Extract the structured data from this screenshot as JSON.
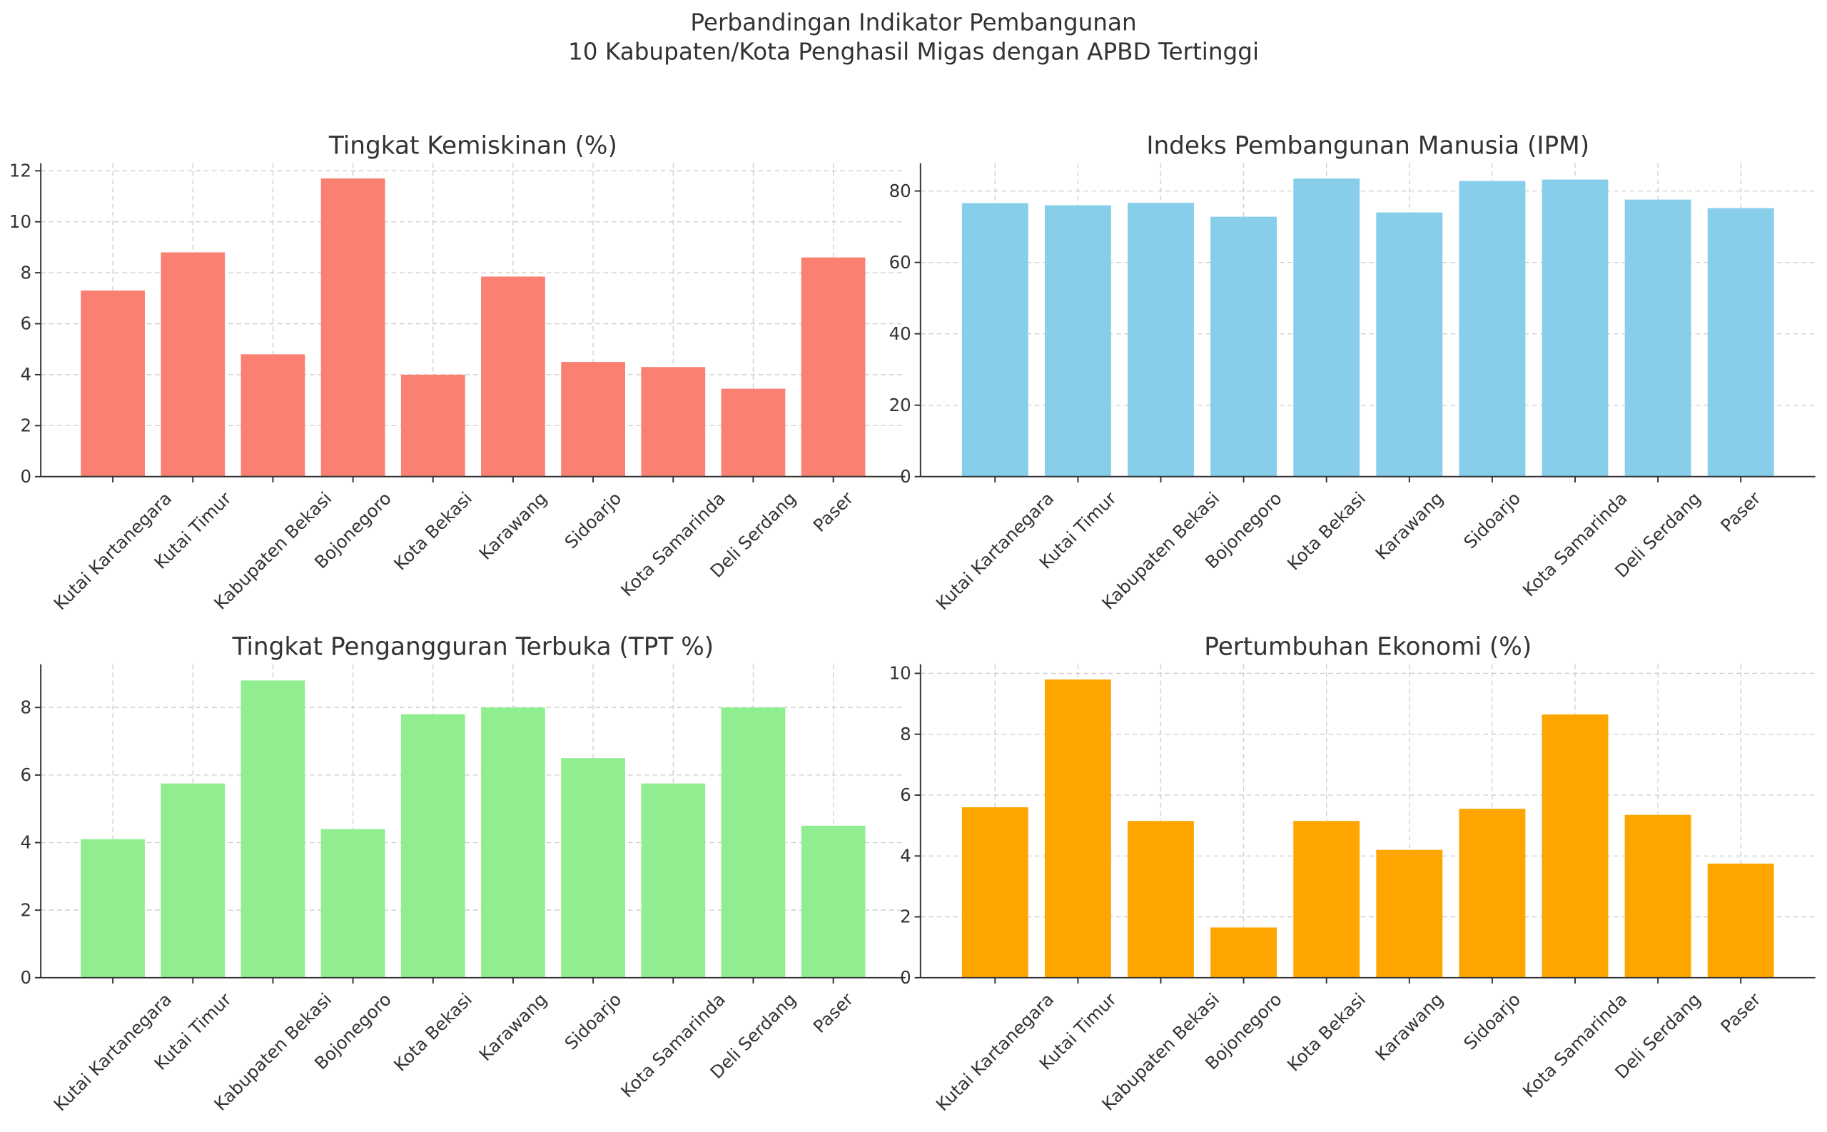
{
  "title": "Perbandingan Indikator Pembangunan",
  "subtitle": "10 Kabupaten/Kota Penghasil Migas dengan APBD Tertinggi",
  "chart_data": [
    {
      "type": "bar",
      "title": "Tingkat Kemiskinan (%)",
      "categories": [
        "Kutai Kartanegara",
        "Kutai Timur",
        "Kabupaten Bekasi",
        "Bojonegoro",
        "Kota Bekasi",
        "Karawang",
        "Sidoarjo",
        "Kota Samarinda",
        "Deli Serdang",
        "Paser"
      ],
      "values": [
        7.3,
        8.8,
        4.8,
        11.7,
        4.0,
        7.85,
        4.5,
        4.3,
        3.45,
        8.6
      ],
      "color": "#fa8072",
      "ylim": [
        0,
        12.3
      ],
      "yticks": [
        0,
        2,
        4,
        6,
        8,
        10,
        12
      ],
      "grid": true
    },
    {
      "type": "bar",
      "title": "Indeks Pembangunan Manusia (IPM)",
      "categories": [
        "Kutai Kartanegara",
        "Kutai Timur",
        "Kabupaten Bekasi",
        "Bojonegoro",
        "Kota Bekasi",
        "Karawang",
        "Sidoarjo",
        "Kota Samarinda",
        "Deli Serdang",
        "Paser"
      ],
      "values": [
        76.6,
        76.0,
        76.7,
        72.8,
        83.5,
        74.0,
        82.8,
        83.2,
        77.6,
        75.2
      ],
      "color": "#87ceeb",
      "ylim": [
        0,
        87.8
      ],
      "yticks": [
        0,
        20,
        40,
        60,
        80
      ],
      "grid": true
    },
    {
      "type": "bar",
      "title": "Tingkat Pengangguran Terbuka (TPT %)",
      "categories": [
        "Kutai Kartanegara",
        "Kutai Timur",
        "Kabupaten Bekasi",
        "Bojonegoro",
        "Kota Bekasi",
        "Karawang",
        "Sidoarjo",
        "Kota Samarinda",
        "Deli Serdang",
        "Paser"
      ],
      "values": [
        4.1,
        5.75,
        8.8,
        4.4,
        7.8,
        8.0,
        6.5,
        5.75,
        8.0,
        4.5
      ],
      "color": "#90ee90",
      "ylim": [
        0,
        9.28
      ],
      "yticks": [
        0,
        2,
        4,
        6,
        8
      ],
      "grid": true
    },
    {
      "type": "bar",
      "title": "Pertumbuhan Ekonomi (%)",
      "categories": [
        "Kutai Kartanegara",
        "Kutai Timur",
        "Kabupaten Bekasi",
        "Bojonegoro",
        "Kota Bekasi",
        "Karawang",
        "Sidoarjo",
        "Kota Samarinda",
        "Deli Serdang",
        "Paser"
      ],
      "values": [
        5.6,
        9.8,
        5.15,
        1.65,
        5.15,
        4.2,
        5.55,
        8.65,
        5.35,
        3.75
      ],
      "color": "#ffa500",
      "ylim": [
        0,
        10.3
      ],
      "yticks": [
        0,
        2,
        4,
        6,
        8,
        10
      ],
      "grid": true
    }
  ]
}
